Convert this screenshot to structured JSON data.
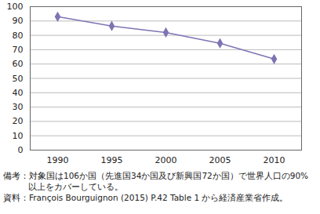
{
  "chart_data": {
    "type": "line",
    "categories": [
      "1990",
      "1995",
      "2000",
      "2005",
      "2010"
    ],
    "values": [
      93,
      86.5,
      82,
      74.5,
      63.5
    ],
    "color": "#7e74b4",
    "marker": "diamond",
    "ylim": [
      0,
      100
    ],
    "yticks": [
      0,
      10,
      20,
      30,
      40,
      50,
      60,
      70,
      80,
      90,
      100
    ],
    "grid": true,
    "notes": [
      "備考：対象国は106か国（先進国34か国及び新興国72か国）で世界人口の90%以上をカバーしている。",
      "資料：François Bourguignon (2015) P.42 Table 1 から経済産業省作成。"
    ]
  }
}
